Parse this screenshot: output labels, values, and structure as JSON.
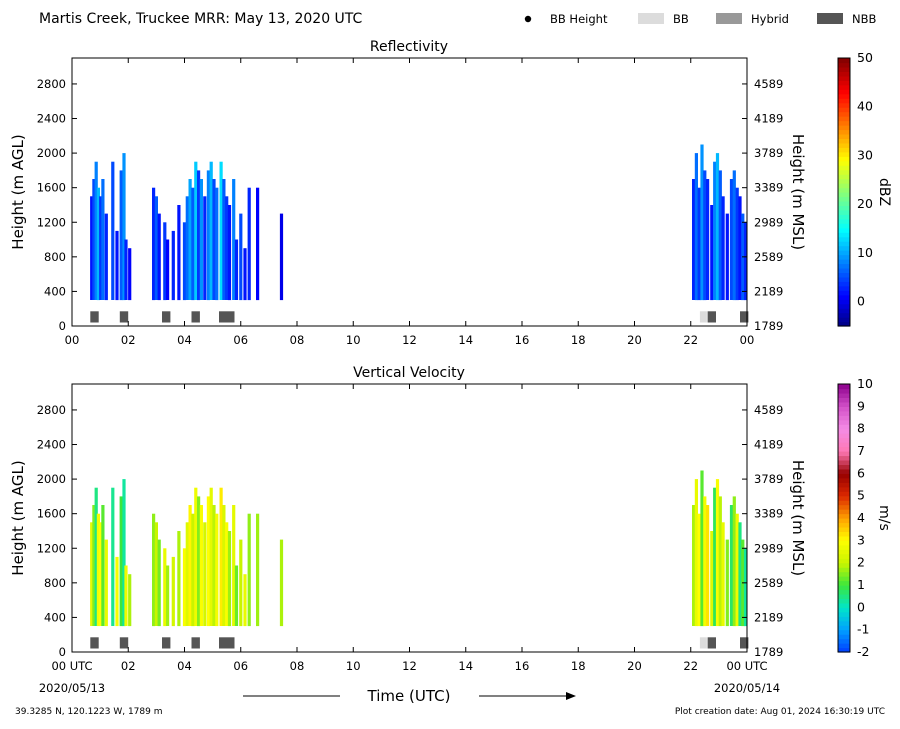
{
  "header": {
    "title": "Martis Creek, Truckee MRR:  May 13, 2020 UTC",
    "legend": [
      {
        "label": "BB Height",
        "marker": "dot",
        "color": "#000000"
      },
      {
        "label": "BB",
        "marker": "box",
        "color": "#dcdcdc"
      },
      {
        "label": "Hybrid",
        "marker": "box",
        "color": "#999999"
      },
      {
        "label": "NBB",
        "marker": "box",
        "color": "#555555"
      }
    ]
  },
  "footer": {
    "location": "39.3285 N, 120.1223 W, 1789 m",
    "created": "Plot creation date: Aug 01, 2024 16:30:19 UTC",
    "xlabel": "Time (UTC)",
    "start_date": "2020/05/13",
    "end_date": "2020/05/14"
  },
  "chart_data": [
    {
      "type": "heatmap",
      "title": "Reflectivity",
      "xlabel": "Time (UTC)",
      "ylabel": "Height (m AGL)",
      "ylabel_right": "Height (m MSL)",
      "xlim": [
        0,
        24
      ],
      "ylim": [
        0,
        3100
      ],
      "xticks": [
        "00",
        "02",
        "04",
        "06",
        "08",
        "10",
        "12",
        "14",
        "16",
        "18",
        "20",
        "22",
        "00"
      ],
      "yticks_left": [
        0,
        400,
        800,
        1200,
        1600,
        2000,
        2400,
        2800
      ],
      "yticks_right": [
        1789,
        2189,
        2589,
        2989,
        3389,
        3789,
        4189,
        4589
      ],
      "colorbar": {
        "label": "dBZ",
        "min": -5,
        "max": 50,
        "ticks": [
          0,
          10,
          20,
          30,
          40,
          50
        ],
        "colormap": "jet"
      },
      "columns": [
        {
          "t": 0.7,
          "top": 1500,
          "value": 2
        },
        {
          "t": 0.78,
          "top": 1700,
          "value": 5
        },
        {
          "t": 0.86,
          "top": 1900,
          "value": 8
        },
        {
          "t": 0.94,
          "top": 1600,
          "value": 11
        },
        {
          "t": 1.02,
          "top": 1500,
          "value": 4
        },
        {
          "t": 1.1,
          "top": 1700,
          "value": 7
        },
        {
          "t": 1.22,
          "top": 1300,
          "value": 3
        },
        {
          "t": 1.45,
          "top": 1900,
          "value": 5
        },
        {
          "t": 1.6,
          "top": 1100,
          "value": 2
        },
        {
          "t": 1.75,
          "top": 1800,
          "value": 6
        },
        {
          "t": 1.85,
          "top": 2000,
          "value": 9
        },
        {
          "t": 1.92,
          "top": 1000,
          "value": 3
        },
        {
          "t": 2.05,
          "top": 900,
          "value": 1
        },
        {
          "t": 2.9,
          "top": 1600,
          "value": 3
        },
        {
          "t": 3.0,
          "top": 1500,
          "value": 6
        },
        {
          "t": 3.1,
          "top": 1300,
          "value": 2
        },
        {
          "t": 3.3,
          "top": 1200,
          "value": 4
        },
        {
          "t": 3.4,
          "top": 1000,
          "value": 1
        },
        {
          "t": 3.6,
          "top": 1100,
          "value": 3
        },
        {
          "t": 3.8,
          "top": 1400,
          "value": 2
        },
        {
          "t": 4.0,
          "top": 1200,
          "value": 5
        },
        {
          "t": 4.1,
          "top": 1500,
          "value": 7
        },
        {
          "t": 4.2,
          "top": 1700,
          "value": 10
        },
        {
          "t": 4.3,
          "top": 1600,
          "value": 6
        },
        {
          "t": 4.4,
          "top": 1900,
          "value": 12
        },
        {
          "t": 4.5,
          "top": 1800,
          "value": 4
        },
        {
          "t": 4.6,
          "top": 1700,
          "value": 9
        },
        {
          "t": 4.72,
          "top": 1500,
          "value": 3
        },
        {
          "t": 4.85,
          "top": 1800,
          "value": 8
        },
        {
          "t": 4.95,
          "top": 1900,
          "value": 11
        },
        {
          "t": 5.05,
          "top": 1700,
          "value": 5
        },
        {
          "t": 5.15,
          "top": 1600,
          "value": 7
        },
        {
          "t": 5.3,
          "top": 1900,
          "value": 13
        },
        {
          "t": 5.4,
          "top": 1700,
          "value": 6
        },
        {
          "t": 5.5,
          "top": 1500,
          "value": 4
        },
        {
          "t": 5.6,
          "top": 1400,
          "value": 2
        },
        {
          "t": 5.75,
          "top": 1700,
          "value": 8
        },
        {
          "t": 5.85,
          "top": 1000,
          "value": 3
        },
        {
          "t": 6.0,
          "top": 1300,
          "value": 5
        },
        {
          "t": 6.15,
          "top": 900,
          "value": 2
        },
        {
          "t": 6.3,
          "top": 1600,
          "value": 3
        },
        {
          "t": 6.6,
          "top": 1600,
          "value": 1
        },
        {
          "t": 7.45,
          "top": 1300,
          "value": 0
        },
        {
          "t": 22.1,
          "top": 1700,
          "value": 3
        },
        {
          "t": 22.2,
          "top": 2000,
          "value": 7
        },
        {
          "t": 22.3,
          "top": 1600,
          "value": 4
        },
        {
          "t": 22.4,
          "top": 2100,
          "value": 9
        },
        {
          "t": 22.5,
          "top": 1800,
          "value": 5
        },
        {
          "t": 22.6,
          "top": 1700,
          "value": 3
        },
        {
          "t": 22.75,
          "top": 1400,
          "value": 2
        },
        {
          "t": 22.85,
          "top": 1900,
          "value": 8
        },
        {
          "t": 22.95,
          "top": 2000,
          "value": 11
        },
        {
          "t": 23.05,
          "top": 1800,
          "value": 6
        },
        {
          "t": 23.15,
          "top": 1500,
          "value": 3
        },
        {
          "t": 23.3,
          "top": 1300,
          "value": 2
        },
        {
          "t": 23.45,
          "top": 1700,
          "value": 5
        },
        {
          "t": 23.55,
          "top": 1800,
          "value": 7
        },
        {
          "t": 23.65,
          "top": 1600,
          "value": 4
        },
        {
          "t": 23.75,
          "top": 1500,
          "value": 2
        },
        {
          "t": 23.85,
          "top": 1300,
          "value": 6
        },
        {
          "t": 23.95,
          "top": 1200,
          "value": 3
        }
      ],
      "bb_type_markers": [
        {
          "t": 0.8,
          "width": 0.3,
          "kind": "NBB"
        },
        {
          "t": 1.85,
          "width": 0.3,
          "kind": "NBB"
        },
        {
          "t": 3.35,
          "width": 0.3,
          "kind": "NBB"
        },
        {
          "t": 4.4,
          "width": 0.3,
          "kind": "NBB"
        },
        {
          "t": 5.5,
          "width": 0.55,
          "kind": "NBB"
        },
        {
          "t": 22.45,
          "width": 0.25,
          "kind": "BB"
        },
        {
          "t": 22.75,
          "width": 0.3,
          "kind": "NBB"
        },
        {
          "t": 23.9,
          "width": 0.3,
          "kind": "NBB"
        }
      ]
    },
    {
      "type": "heatmap",
      "title": "Vertical Velocity",
      "xlabel": "Time (UTC)",
      "ylabel": "Height (m AGL)",
      "ylabel_right": "Height (m MSL)",
      "xlim": [
        0,
        24
      ],
      "ylim": [
        0,
        3100
      ],
      "xticks": [
        "00 UTC",
        "02",
        "04",
        "06",
        "08",
        "10",
        "12",
        "14",
        "16",
        "18",
        "20",
        "22",
        "00 UTC"
      ],
      "yticks_left": [
        0,
        400,
        800,
        1200,
        1600,
        2000,
        2400,
        2800
      ],
      "yticks_right": [
        1789,
        2189,
        2589,
        2989,
        3389,
        3789,
        4189,
        4589
      ],
      "colorbar": {
        "label": "m/s",
        "min": -2,
        "max": 10,
        "ticks": [
          -2,
          -1,
          0,
          1,
          2,
          3,
          4,
          5,
          6,
          7,
          8,
          9,
          10
        ],
        "colormap": "velocity"
      },
      "columns": [
        {
          "t": 0.7,
          "top": 1500,
          "value": 2.5
        },
        {
          "t": 0.78,
          "top": 1700,
          "value": 1.5
        },
        {
          "t": 0.86,
          "top": 1900,
          "value": 0.5
        },
        {
          "t": 0.94,
          "top": 1600,
          "value": 2.8
        },
        {
          "t": 1.02,
          "top": 1500,
          "value": 3.0
        },
        {
          "t": 1.1,
          "top": 1700,
          "value": 1.2
        },
        {
          "t": 1.22,
          "top": 1300,
          "value": 2.6
        },
        {
          "t": 1.45,
          "top": 1900,
          "value": 0.4
        },
        {
          "t": 1.6,
          "top": 1100,
          "value": 2.8
        },
        {
          "t": 1.75,
          "top": 1800,
          "value": 1.0
        },
        {
          "t": 1.85,
          "top": 2000,
          "value": 0.3
        },
        {
          "t": 1.92,
          "top": 1000,
          "value": 2.7
        },
        {
          "t": 2.05,
          "top": 900,
          "value": 1.8
        },
        {
          "t": 2.9,
          "top": 1600,
          "value": 1.6
        },
        {
          "t": 3.0,
          "top": 1500,
          "value": 2.0
        },
        {
          "t": 3.1,
          "top": 1300,
          "value": 1.4
        },
        {
          "t": 3.3,
          "top": 1200,
          "value": 2.6
        },
        {
          "t": 3.4,
          "top": 1000,
          "value": 1.7
        },
        {
          "t": 3.6,
          "top": 1100,
          "value": 2.2
        },
        {
          "t": 3.8,
          "top": 1400,
          "value": 1.8
        },
        {
          "t": 4.0,
          "top": 1200,
          "value": 2.9
        },
        {
          "t": 4.1,
          "top": 1500,
          "value": 2.4
        },
        {
          "t": 4.2,
          "top": 1700,
          "value": 3.1
        },
        {
          "t": 4.3,
          "top": 1600,
          "value": 2.0
        },
        {
          "t": 4.4,
          "top": 1900,
          "value": 2.7
        },
        {
          "t": 4.5,
          "top": 1800,
          "value": 1.5
        },
        {
          "t": 4.6,
          "top": 1700,
          "value": 2.9
        },
        {
          "t": 4.72,
          "top": 1500,
          "value": 2.2
        },
        {
          "t": 4.85,
          "top": 1800,
          "value": 3.0
        },
        {
          "t": 4.95,
          "top": 1900,
          "value": 2.5
        },
        {
          "t": 5.05,
          "top": 1700,
          "value": 1.9
        },
        {
          "t": 5.15,
          "top": 1600,
          "value": 2.8
        },
        {
          "t": 5.3,
          "top": 1900,
          "value": 3.2
        },
        {
          "t": 5.4,
          "top": 1700,
          "value": 2.3
        },
        {
          "t": 5.5,
          "top": 1500,
          "value": 2.9
        },
        {
          "t": 5.6,
          "top": 1400,
          "value": 1.7
        },
        {
          "t": 5.75,
          "top": 1700,
          "value": 2.5
        },
        {
          "t": 5.85,
          "top": 1000,
          "value": 1.3
        },
        {
          "t": 6.0,
          "top": 1300,
          "value": 2.0
        },
        {
          "t": 6.15,
          "top": 900,
          "value": 2.6
        },
        {
          "t": 6.3,
          "top": 1600,
          "value": 1.6
        },
        {
          "t": 6.6,
          "top": 1600,
          "value": 1.7
        },
        {
          "t": 7.45,
          "top": 1300,
          "value": 1.8
        },
        {
          "t": 22.1,
          "top": 1700,
          "value": 1.8
        },
        {
          "t": 22.2,
          "top": 2000,
          "value": 2.6
        },
        {
          "t": 22.3,
          "top": 1600,
          "value": 3.0
        },
        {
          "t": 22.4,
          "top": 2100,
          "value": 1.2
        },
        {
          "t": 22.5,
          "top": 1800,
          "value": 2.8
        },
        {
          "t": 22.6,
          "top": 1700,
          "value": 3.3
        },
        {
          "t": 22.75,
          "top": 1400,
          "value": 2.4
        },
        {
          "t": 22.85,
          "top": 1900,
          "value": 0.8
        },
        {
          "t": 22.95,
          "top": 2000,
          "value": 2.9
        },
        {
          "t": 23.05,
          "top": 1800,
          "value": 1.9
        },
        {
          "t": 23.15,
          "top": 1500,
          "value": 2.6
        },
        {
          "t": 23.3,
          "top": 1300,
          "value": 1.5
        },
        {
          "t": 23.45,
          "top": 1700,
          "value": 0.7
        },
        {
          "t": 23.55,
          "top": 1800,
          "value": 1.6
        },
        {
          "t": 23.65,
          "top": 1600,
          "value": 2.7
        },
        {
          "t": 23.75,
          "top": 1500,
          "value": 0.5
        },
        {
          "t": 23.85,
          "top": 1300,
          "value": 1.2
        },
        {
          "t": 23.95,
          "top": 1200,
          "value": 0.3
        }
      ],
      "bb_type_markers": [
        {
          "t": 0.8,
          "width": 0.3,
          "kind": "NBB"
        },
        {
          "t": 1.85,
          "width": 0.3,
          "kind": "NBB"
        },
        {
          "t": 3.35,
          "width": 0.3,
          "kind": "NBB"
        },
        {
          "t": 4.4,
          "width": 0.3,
          "kind": "NBB"
        },
        {
          "t": 5.5,
          "width": 0.55,
          "kind": "NBB"
        },
        {
          "t": 22.45,
          "width": 0.25,
          "kind": "BB"
        },
        {
          "t": 22.75,
          "width": 0.3,
          "kind": "NBB"
        },
        {
          "t": 23.9,
          "width": 0.3,
          "kind": "NBB"
        }
      ]
    }
  ]
}
